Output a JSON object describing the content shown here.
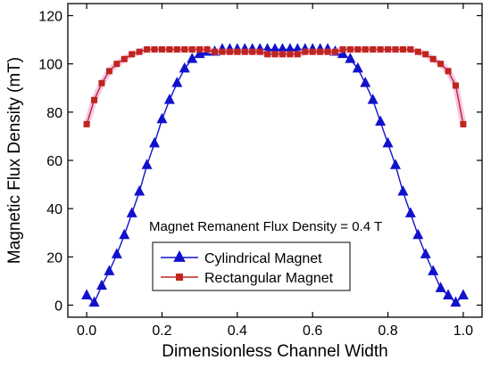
{
  "chart_data": {
    "type": "line",
    "title": "",
    "xlabel": "Dimensionless Channel Width",
    "ylabel": "Magnetic Flux Density (mT)",
    "xlim": [
      -0.05,
      1.05
    ],
    "ylim": [
      -5,
      125
    ],
    "xticks": [
      "0.0",
      "0.2",
      "0.4",
      "0.6",
      "0.8",
      "1.0"
    ],
    "yticks": [
      "0",
      "20",
      "40",
      "60",
      "80",
      "100",
      "120"
    ],
    "grid": false,
    "legend_position": "bottom-center",
    "annotation": "Magnet Remanent Flux Density = 0.4 T",
    "series": [
      {
        "name": "Cylindrical Magnet",
        "color": "#1111cc",
        "marker": "triangle",
        "x": [
          0.0,
          0.02,
          0.04,
          0.06,
          0.08,
          0.1,
          0.12,
          0.14,
          0.16,
          0.18,
          0.2,
          0.22,
          0.24,
          0.26,
          0.28,
          0.3,
          0.32,
          0.34,
          0.36,
          0.38,
          0.4,
          0.42,
          0.44,
          0.46,
          0.48,
          0.5,
          0.52,
          0.54,
          0.56,
          0.58,
          0.6,
          0.62,
          0.64,
          0.66,
          0.68,
          0.7,
          0.72,
          0.74,
          0.76,
          0.78,
          0.8,
          0.82,
          0.84,
          0.86,
          0.88,
          0.9,
          0.92,
          0.94,
          0.96,
          0.98,
          1.0
        ],
        "y": [
          4,
          1,
          8,
          14,
          21,
          29,
          38,
          47,
          58,
          67,
          77,
          85,
          92,
          98,
          102,
          104,
          105,
          105,
          106,
          106,
          106,
          106,
          106,
          106,
          106,
          106,
          106,
          106,
          106,
          106,
          106,
          106,
          106,
          105,
          104,
          102,
          98,
          92,
          85,
          76,
          67,
          58,
          47,
          38,
          29,
          21,
          14,
          7,
          4,
          1,
          4
        ]
      },
      {
        "name": "Rectangular Magnet",
        "color": "#c0251d",
        "marker": "square",
        "x": [
          0.0,
          0.02,
          0.04,
          0.06,
          0.08,
          0.1,
          0.12,
          0.14,
          0.16,
          0.18,
          0.2,
          0.22,
          0.24,
          0.26,
          0.28,
          0.3,
          0.32,
          0.34,
          0.36,
          0.38,
          0.4,
          0.42,
          0.44,
          0.46,
          0.48,
          0.5,
          0.52,
          0.54,
          0.56,
          0.58,
          0.6,
          0.62,
          0.64,
          0.66,
          0.68,
          0.7,
          0.72,
          0.74,
          0.76,
          0.78,
          0.8,
          0.82,
          0.84,
          0.86,
          0.88,
          0.9,
          0.92,
          0.94,
          0.96,
          0.98,
          1.0
        ],
        "y": [
          75,
          85,
          92,
          97,
          100,
          102,
          104,
          105,
          106,
          106,
          106,
          106,
          106,
          106,
          106,
          106,
          106,
          105,
          105,
          105,
          105,
          105,
          105,
          105,
          104,
          104,
          104,
          104,
          104,
          105,
          105,
          105,
          105,
          105,
          106,
          106,
          106,
          106,
          106,
          106,
          106,
          106,
          106,
          106,
          105,
          104,
          102,
          100,
          97,
          91,
          75
        ]
      }
    ]
  }
}
